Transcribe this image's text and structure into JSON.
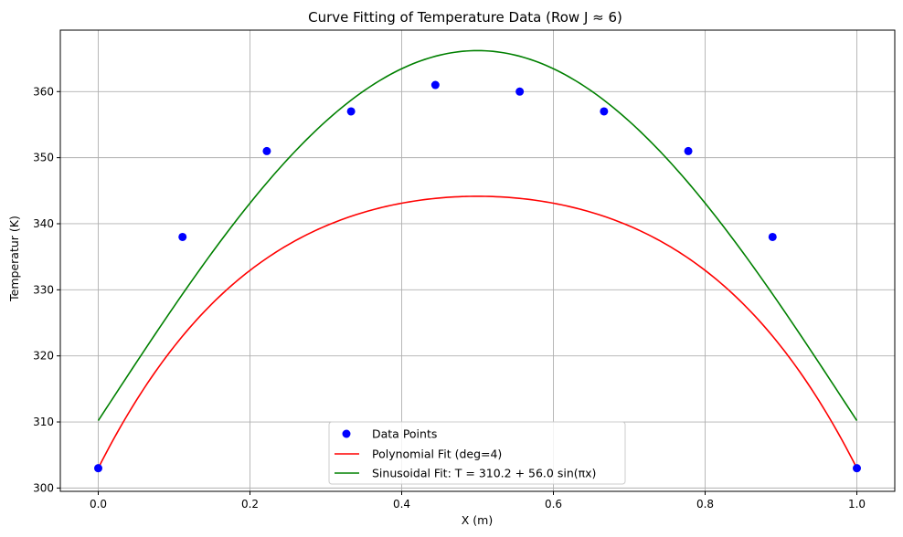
{
  "chart_data": {
    "type": "scatter+line",
    "title": "Curve Fitting of Temperature Data (Row J ≈ 6)",
    "xlabel": "X (m)",
    "ylabel": "Temperatur (K)",
    "xlim": [
      -0.05,
      1.05
    ],
    "ylim": [
      299.5,
      369.3
    ],
    "xticks": [
      0.0,
      0.2,
      0.4,
      0.6,
      0.8,
      1.0
    ],
    "xtick_labels": [
      "0.0",
      "0.2",
      "0.4",
      "0.6",
      "0.8",
      "1.0"
    ],
    "yticks": [
      300,
      310,
      320,
      330,
      340,
      350,
      360
    ],
    "ytick_labels": [
      "300",
      "310",
      "320",
      "330",
      "340",
      "350",
      "360"
    ],
    "grid": true,
    "legend_position": "bottom-center",
    "series": [
      {
        "name": "Data Points",
        "kind": "scatter",
        "color": "#0000ff",
        "x": [
          0.0,
          0.1111,
          0.2222,
          0.3333,
          0.4444,
          0.5556,
          0.6667,
          0.7778,
          0.8889,
          1.0
        ],
        "y": [
          303,
          338,
          351,
          357,
          361,
          360,
          357,
          351,
          338,
          303
        ]
      },
      {
        "name": "Polynomial Fit (deg=4)",
        "kind": "line",
        "color": "#ff0000",
        "coefficients_desc": [
          -250.0,
          500.0,
          -477.12,
          227.12,
          303.0
        ]
      },
      {
        "name": "Sinusoidal Fit: T = 310.2 + 56.0 sin(πx)",
        "kind": "line",
        "color": "#008000",
        "offset": 310.2,
        "amplitude": 56.0
      }
    ]
  }
}
